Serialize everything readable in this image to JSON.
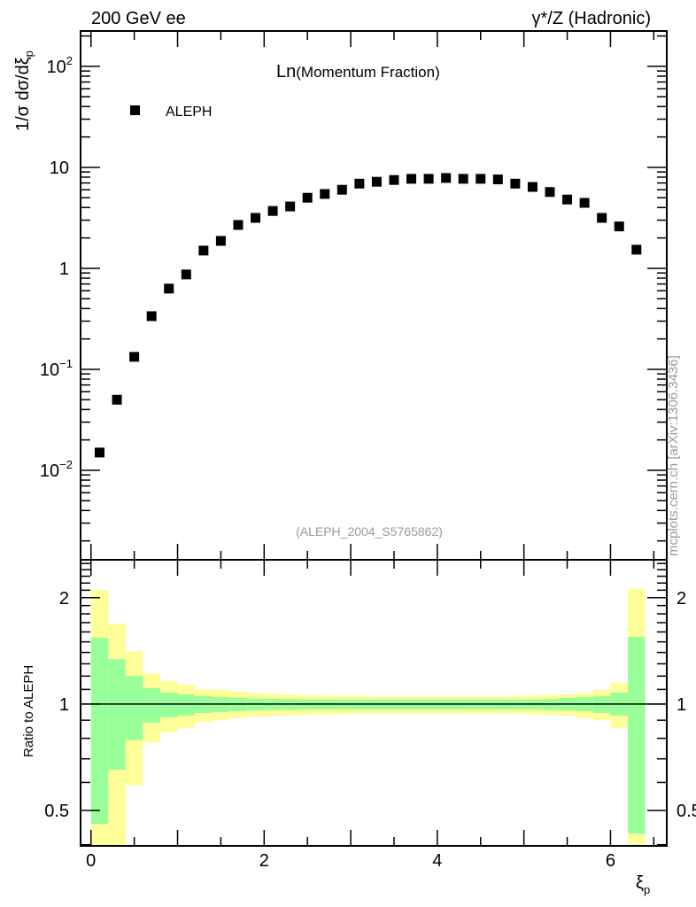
{
  "chart_data": {
    "type": "scatter",
    "title_left": "200 GeV ee",
    "title_right": "γ*/Z (Hadronic)",
    "plot_label_main": "Ln",
    "plot_label_sub": "(Momentum Fraction)",
    "watermark": "(ALEPH_2004_S5765862)",
    "side_label": "mcplots.cern.ch [arXiv:1306.3436]",
    "ylabel": "1/σ dσ/dξ",
    "ylabel_sub": "p",
    "xlabel": "ξ",
    "xlabel_sub": "p",
    "ratio_ylabel": "Ratio to ALEPH",
    "legend": [
      {
        "name": "ALEPH",
        "marker": "square",
        "color": "#000000"
      }
    ],
    "legend_position": "top-left",
    "xlim": [
      -0.12,
      6.65
    ],
    "ylim": [
      0.0013,
      224
    ],
    "yscale": "log",
    "ratio_ylim": [
      0.397,
      2.56
    ],
    "ratio_yscale": "log",
    "x_ticks": [
      {
        "v": 0,
        "label": "0"
      },
      {
        "v": 2,
        "label": "2"
      },
      {
        "v": 4,
        "label": "4"
      },
      {
        "v": 6,
        "label": "6"
      }
    ],
    "y_ticks": [
      {
        "v": 100,
        "base": "10",
        "exp": "2"
      },
      {
        "v": 10,
        "base": "10",
        "exp": ""
      },
      {
        "v": 1,
        "base": "1",
        "exp": ""
      },
      {
        "v": 0.1,
        "base": "10",
        "exp": "−1"
      },
      {
        "v": 0.01,
        "base": "10",
        "exp": "−2"
      }
    ],
    "ratio_ticks": [
      {
        "v": 2,
        "label": "2"
      },
      {
        "v": 1,
        "label": "1"
      },
      {
        "v": 0.5,
        "label": "0.5"
      }
    ],
    "series": [
      {
        "name": "ALEPH",
        "x": [
          0.1,
          0.3,
          0.5,
          0.7,
          0.9,
          1.1,
          1.3,
          1.5,
          1.7,
          1.9,
          2.1,
          2.3,
          2.5,
          2.7,
          2.9,
          3.1,
          3.3,
          3.5,
          3.7,
          3.9,
          4.1,
          4.3,
          4.5,
          4.7,
          4.9,
          5.1,
          5.3,
          5.5,
          5.7,
          5.9,
          6.1,
          6.3
        ],
        "y": [
          0.015,
          0.05,
          0.133,
          0.336,
          0.63,
          0.87,
          1.5,
          1.87,
          2.69,
          3.16,
          3.7,
          4.1,
          5.0,
          5.45,
          6.0,
          6.9,
          7.2,
          7.5,
          7.7,
          7.7,
          7.85,
          7.7,
          7.7,
          7.6,
          6.9,
          6.4,
          5.7,
          4.8,
          4.45,
          3.16,
          2.6,
          1.53
        ]
      }
    ],
    "ratio_bands": {
      "bin_edges_start": 0,
      "bin_width": 0.2,
      "yellow_color": "#ffff99",
      "green_color": "#99ff99",
      "yellow_hi": [
        2.1,
        1.69,
        1.41,
        1.22,
        1.16,
        1.135,
        1.1,
        1.097,
        1.084,
        1.075,
        1.07,
        1.065,
        1.06,
        1.058,
        1.055,
        1.055,
        1.053,
        1.053,
        1.053,
        1.053,
        1.053,
        1.053,
        1.053,
        1.053,
        1.055,
        1.058,
        1.062,
        1.066,
        1.075,
        1.097,
        1.15,
        2.12
      ],
      "green_hi": [
        1.54,
        1.34,
        1.2,
        1.11,
        1.078,
        1.066,
        1.053,
        1.047,
        1.041,
        1.037,
        1.035,
        1.033,
        1.032,
        1.031,
        1.03,
        1.03,
        1.03,
        1.03,
        1.03,
        1.03,
        1.03,
        1.03,
        1.03,
        1.03,
        1.03,
        1.031,
        1.033,
        1.04,
        1.047,
        1.053,
        1.078,
        1.55
      ],
      "green_lo": [
        0.458,
        0.652,
        0.79,
        0.886,
        0.917,
        0.928,
        0.944,
        0.949,
        0.955,
        0.96,
        0.962,
        0.964,
        0.965,
        0.966,
        0.966,
        0.966,
        0.966,
        0.966,
        0.966,
        0.966,
        0.966,
        0.966,
        0.966,
        0.966,
        0.966,
        0.965,
        0.962,
        0.96,
        0.955,
        0.944,
        0.928,
        0.43
      ],
      "yellow_lo": [
        0.35,
        0.35,
        0.59,
        0.78,
        0.831,
        0.856,
        0.891,
        0.901,
        0.912,
        0.92,
        0.925,
        0.93,
        0.933,
        0.935,
        0.937,
        0.938,
        0.938,
        0.938,
        0.938,
        0.938,
        0.938,
        0.938,
        0.938,
        0.938,
        0.938,
        0.935,
        0.932,
        0.928,
        0.912,
        0.901,
        0.855,
        0.35
      ]
    }
  }
}
